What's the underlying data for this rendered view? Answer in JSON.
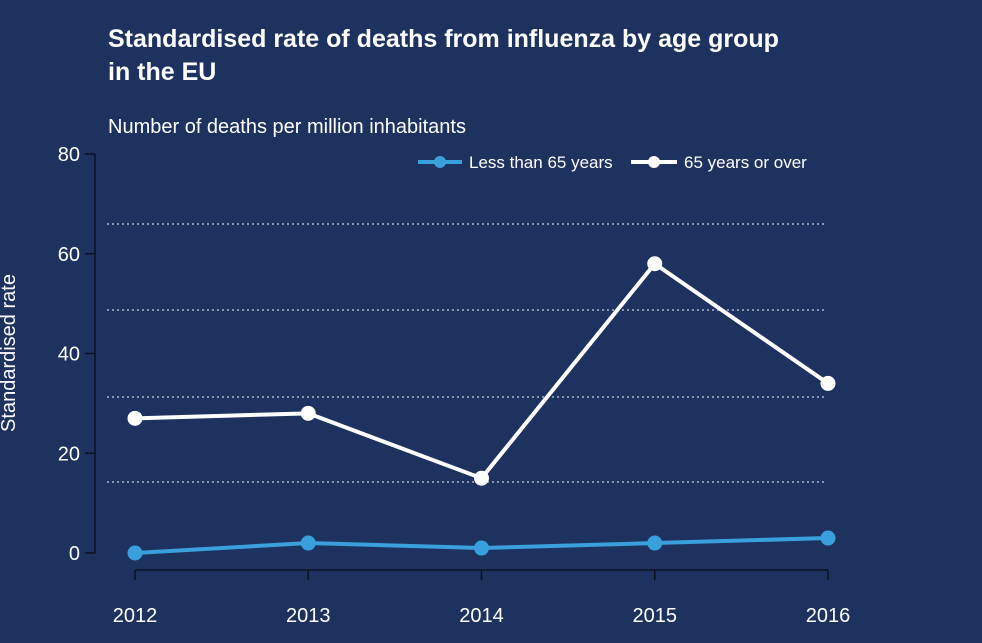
{
  "chart_data": {
    "type": "line",
    "title_lines": [
      "Standardised rate of deaths from influenza by age group",
      "in the EU"
    ],
    "subtitle": "Number of deaths per million inhabitants",
    "ylabel": "Standardised rate",
    "xlabel": "",
    "x": [
      "2012",
      "2013",
      "2014",
      "2015",
      "2016"
    ],
    "ylim": [
      0,
      80
    ],
    "yticks": [
      "0",
      "20",
      "40",
      "60",
      "80"
    ],
    "series": [
      {
        "name": "Less than 65 years",
        "color": "#3a9fdd",
        "values": [
          0,
          2,
          1,
          2,
          3
        ]
      },
      {
        "name": "65 years or over",
        "color": "#ffffff",
        "values": [
          27,
          28,
          15,
          58,
          34
        ]
      }
    ],
    "legend_position": "top",
    "grid": "horizontal dotted"
  }
}
